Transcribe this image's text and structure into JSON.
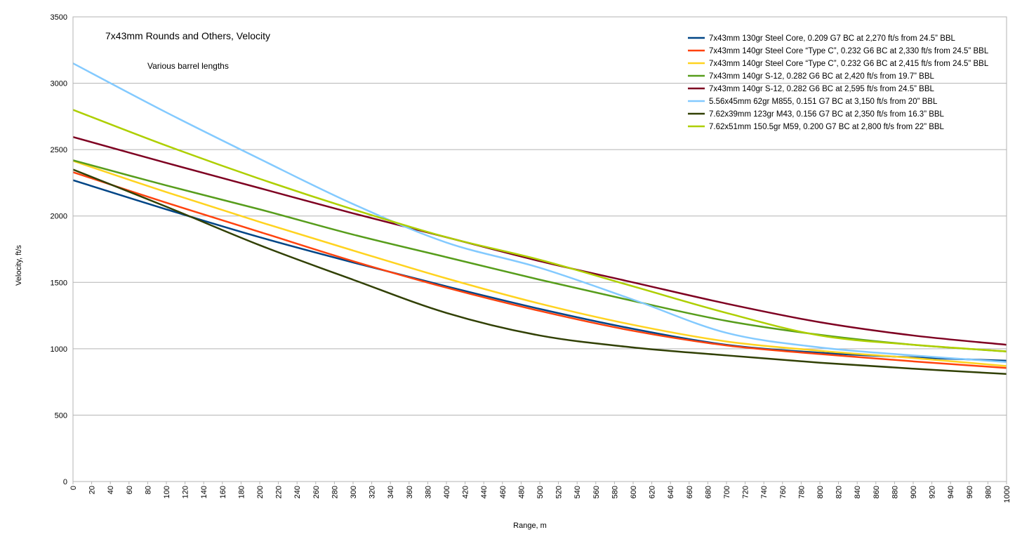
{
  "chart_data": {
    "type": "line",
    "title": "7x43mm Rounds and Others, Velocity",
    "subtitle": "Various barrel lengths",
    "xlabel": "Range, m",
    "ylabel": "Velocity, ft/s",
    "xlim": [
      0,
      1000
    ],
    "ylim": [
      0,
      3500
    ],
    "xticks": [
      "0",
      "20",
      "40",
      "60",
      "80",
      "100",
      "120",
      "140",
      "160",
      "180",
      "200",
      "220",
      "240",
      "260",
      "280",
      "300",
      "320",
      "340",
      "360",
      "380",
      "400",
      "420",
      "440",
      "460",
      "480",
      "500",
      "520",
      "540",
      "560",
      "580",
      "600",
      "620",
      "640",
      "660",
      "680",
      "700",
      "720",
      "740",
      "760",
      "780",
      "800",
      "820",
      "840",
      "860",
      "880",
      "900",
      "920",
      "940",
      "960",
      "980",
      "1000"
    ],
    "yticks": [
      "0",
      "500",
      "1000",
      "1500",
      "2000",
      "2500",
      "3000",
      "3500"
    ],
    "grid": "horizontal",
    "legend_position": "top-right",
    "series": [
      {
        "name": "7x43mm 130gr Steel Core, 0.209 G7 BC at 2,270 ft/s from 24.5” BBL",
        "color": "#004586",
        "x": [
          0,
          100,
          200,
          300,
          400,
          500,
          600,
          700,
          800,
          900,
          1000
        ],
        "values": [
          2270,
          2050,
          1840,
          1650,
          1470,
          1300,
          1150,
          1030,
          970,
          935,
          910
        ]
      },
      {
        "name": "7x43mm 140gr Steel Core “Type C”, 0.232 G6 BC at 2,330 ft/s from 24.5” BBL",
        "color": "#ff420e",
        "x": [
          0,
          100,
          200,
          300,
          400,
          500,
          600,
          700,
          800,
          900,
          1000
        ],
        "values": [
          2330,
          2100,
          1880,
          1660,
          1460,
          1285,
          1135,
          1025,
          960,
          905,
          855
        ]
      },
      {
        "name": "7x43mm 140gr Steel Core “Type C”, 0.232 G6 BC at 2,415 ft/s from 24.5” BBL",
        "color": "#ffd320",
        "x": [
          0,
          100,
          200,
          300,
          400,
          500,
          600,
          700,
          800,
          900,
          1000
        ],
        "values": [
          2415,
          2180,
          1955,
          1740,
          1530,
          1340,
          1180,
          1055,
          985,
          930,
          870
        ]
      },
      {
        "name": "7x43mm 140gr S-12, 0.282 G6 BC at 2,420 ft/s from 19.7” BBL",
        "color": "#579d1c",
        "x": [
          0,
          100,
          200,
          300,
          400,
          500,
          600,
          700,
          800,
          900,
          1000
        ],
        "values": [
          2420,
          2230,
          2050,
          1860,
          1690,
          1520,
          1360,
          1210,
          1105,
          1030,
          980
        ]
      },
      {
        "name": "7x43mm 140gr S-12, 0.282 G6 BC at 2,595 ft/s from 24.5” BBL",
        "color": "#7e0021",
        "x": [
          0,
          100,
          200,
          300,
          400,
          500,
          600,
          700,
          800,
          900,
          1000
        ],
        "values": [
          2595,
          2400,
          2210,
          2020,
          1840,
          1660,
          1500,
          1340,
          1200,
          1100,
          1030
        ]
      },
      {
        "name": "5.56x45mm 62gr M855, 0.151 G7 BC at 3,150 ft/s from 20” BBL",
        "color": "#83caff",
        "x": [
          0,
          100,
          200,
          300,
          400,
          500,
          600,
          700,
          800,
          900,
          1000
        ],
        "values": [
          3150,
          2780,
          2430,
          2090,
          1800,
          1610,
          1370,
          1120,
          1010,
          950,
          900
        ]
      },
      {
        "name": "7.62x39mm 123gr M43, 0.156 G7 BC at 2,350 ft/s from 16.3” BBL",
        "color": "#314004",
        "x": [
          0,
          100,
          200,
          300,
          400,
          500,
          600,
          700,
          800,
          900,
          1000
        ],
        "values": [
          2350,
          2070,
          1780,
          1520,
          1270,
          1100,
          1010,
          950,
          895,
          850,
          810
        ]
      },
      {
        "name": "7.62x51mm 150.5gr M59, 0.200 G7 BC at 2,800 ft/s from 22” BBL",
        "color": "#aecf00",
        "x": [
          0,
          100,
          200,
          300,
          400,
          500,
          600,
          700,
          800,
          900,
          1000
        ],
        "values": [
          2800,
          2530,
          2280,
          2050,
          1840,
          1670,
          1470,
          1270,
          1100,
          1030,
          980
        ]
      }
    ]
  }
}
